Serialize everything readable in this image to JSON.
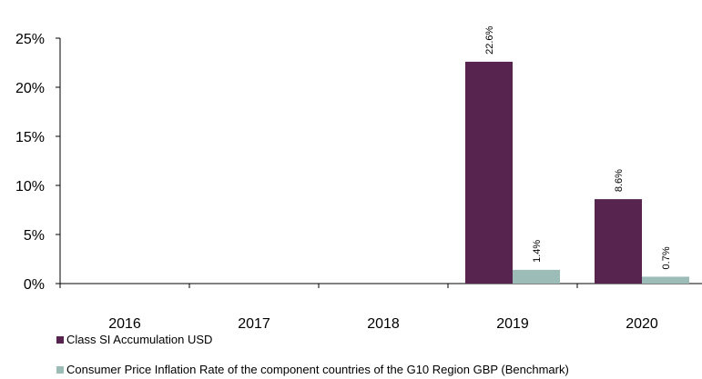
{
  "chart_data": {
    "type": "bar",
    "categories": [
      "2016",
      "2017",
      "2018",
      "2019",
      "2020"
    ],
    "series": [
      {
        "name": "Class SI Accumulation USD",
        "color": "#57244f",
        "values": [
          null,
          null,
          null,
          22.6,
          8.6
        ],
        "labels": [
          "",
          "",
          "",
          "22.6%",
          "8.6%"
        ]
      },
      {
        "name": "Consumer Price Inflation Rate of the component countries of the G10 Region GBP (Benchmark)",
        "color": "#9cbcb8",
        "values": [
          null,
          null,
          null,
          1.4,
          0.7
        ],
        "labels": [
          "",
          "",
          "",
          "1.4%",
          "0.7%"
        ]
      }
    ],
    "yticks": [
      "0%",
      "5%",
      "10%",
      "15%",
      "20%",
      "25%"
    ],
    "ylim": [
      0,
      25
    ],
    "grid": false,
    "legend": "bottom-left"
  }
}
